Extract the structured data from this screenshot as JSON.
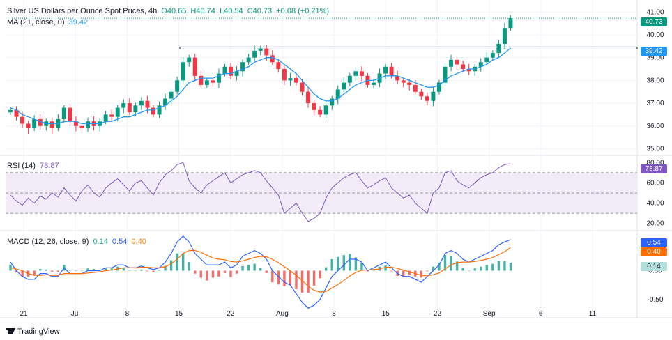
{
  "header": {
    "symbol": "Silver US Dollars per Ounce Spot Prices, 4h",
    "open": "O40.65",
    "high": "H40.74",
    "low": "L40.54",
    "close": "C40.73",
    "change": "+0.08 (+0.21%)",
    "ma_label": "MA (21, close, 0)",
    "ma_value": "39.42",
    "rsi_label": "RSI (14)",
    "rsi_value": "78.87",
    "macd_label": "MACD (12, 26, close, 9)",
    "macd_v1": "0.14",
    "macd_v2": "0.54",
    "macd_v3": "0.40"
  },
  "badges": {
    "price": "40.73",
    "ma": "39.42",
    "rsi": "78.87",
    "macd": "0.54",
    "signal": "0.40",
    "hist": "0.14"
  },
  "footer": {
    "brand": "TradingView"
  },
  "colors": {
    "up": "#089981",
    "down": "#f23645",
    "ma": "#2196f3",
    "rsi": "#7e57c2",
    "macd": "#2962ff",
    "signal": "#ff6d00",
    "grid": "#f0f3fa"
  },
  "chart_data": [
    {
      "type": "candlestick",
      "x_ticks": [
        "21",
        "Jul",
        "8",
        "15",
        "22",
        "Aug",
        "8",
        "15",
        "22",
        "Sep",
        "6",
        "11"
      ],
      "y_ticks": [
        "41.00",
        "40.00",
        "39.00",
        "38.00",
        "37.00",
        "36.00",
        "35.00"
      ],
      "ylim": [
        34.8,
        41.1
      ],
      "series": [
        {
          "name": "MA (21, close, 0)",
          "last": 39.42
        },
        {
          "name": "Resistance",
          "value": 39.42
        }
      ],
      "close_path": [
        36.7,
        36.4,
        36.1,
        35.9,
        36.3,
        36.0,
        36.2,
        35.9,
        36.3,
        36.8,
        36.2,
        36.0,
        35.9,
        36.2,
        36.0,
        36.2,
        36.5,
        36.4,
        36.8,
        37.0,
        36.6,
        36.9,
        37.1,
        36.8,
        36.5,
        36.9,
        37.2,
        37.5,
        38.0,
        38.8,
        39.0,
        38.2,
        37.8,
        38.0,
        37.9,
        38.3,
        38.6,
        38.2,
        38.4,
        38.8,
        39.0,
        39.3,
        39.4,
        39.1,
        38.8,
        38.5,
        38.0,
        38.1,
        37.9,
        37.5,
        37.0,
        36.7,
        36.5,
        36.9,
        37.2,
        37.6,
        37.9,
        38.2,
        38.4,
        38.2,
        37.8,
        37.9,
        38.3,
        38.6,
        38.2,
        38.0,
        37.9,
        37.8,
        37.5,
        37.3,
        37.1,
        37.5,
        37.9,
        38.6,
        38.9,
        38.7,
        38.5,
        38.4,
        38.6,
        38.8,
        39.0,
        39.2,
        39.6,
        40.3,
        40.73
      ],
      "ma_path": [
        36.8,
        36.7,
        36.5,
        36.4,
        36.3,
        36.2,
        36.1,
        36.1,
        36.1,
        36.2,
        36.2,
        36.2,
        36.1,
        36.1,
        36.1,
        36.1,
        36.2,
        36.2,
        36.3,
        36.4,
        36.4,
        36.5,
        36.6,
        36.7,
        36.7,
        36.8,
        36.9,
        37.1,
        37.3,
        37.6,
        37.9,
        38.0,
        38.1,
        38.1,
        38.1,
        38.2,
        38.3,
        38.3,
        38.4,
        38.5,
        38.6,
        38.8,
        38.9,
        39.0,
        39.0,
        38.9,
        38.7,
        38.5,
        38.3,
        38.0,
        37.7,
        37.4,
        37.2,
        37.1,
        37.1,
        37.2,
        37.4,
        37.6,
        37.8,
        37.9,
        38.0,
        38.0,
        38.1,
        38.2,
        38.2,
        38.2,
        38.1,
        38.0,
        37.9,
        37.8,
        37.7,
        37.7,
        37.8,
        38.0,
        38.2,
        38.3,
        38.4,
        38.5,
        38.5,
        38.6,
        38.7,
        38.9,
        39.0,
        39.2,
        39.42
      ]
    },
    {
      "type": "line",
      "name": "RSI (14)",
      "y_ticks": [
        "80.00",
        "60.00",
        "40.00",
        "20.00"
      ],
      "ylim": [
        15,
        85
      ],
      "bands": [
        30,
        50,
        70
      ],
      "values": [
        48,
        42,
        38,
        45,
        40,
        47,
        44,
        50,
        46,
        55,
        48,
        42,
        52,
        58,
        50,
        46,
        55,
        60,
        64,
        58,
        52,
        60,
        62,
        55,
        48,
        60,
        68,
        72,
        78,
        80,
        62,
        55,
        50,
        58,
        62,
        66,
        70,
        60,
        64,
        68,
        70,
        72,
        70,
        62,
        55,
        48,
        30,
        35,
        40,
        30,
        22,
        25,
        30,
        45,
        55,
        60,
        65,
        68,
        70,
        62,
        55,
        58,
        62,
        65,
        55,
        50,
        45,
        48,
        40,
        35,
        30,
        50,
        55,
        70,
        72,
        62,
        58,
        55,
        60,
        65,
        68,
        70,
        75,
        78,
        78.87
      ]
    },
    {
      "type": "macd",
      "name": "MACD (12, 26, close, 9)",
      "y_ticks": [
        "0.50",
        "0.00",
        "-0.50"
      ],
      "ylim": [
        -0.72,
        0.66
      ],
      "macd": [
        0.15,
        0.0,
        -0.1,
        -0.15,
        -0.15,
        -0.05,
        -0.05,
        -0.1,
        -0.1,
        0.05,
        -0.05,
        -0.05,
        -0.05,
        0.0,
        0.0,
        0.0,
        0.05,
        0.05,
        0.1,
        0.1,
        0.05,
        0.05,
        0.08,
        0.05,
        0.02,
        0.05,
        0.15,
        0.3,
        0.5,
        0.6,
        0.5,
        0.3,
        0.2,
        0.1,
        0.1,
        0.1,
        0.15,
        0.05,
        0.1,
        0.25,
        0.3,
        0.35,
        0.3,
        0.2,
        0.0,
        -0.1,
        -0.2,
        -0.25,
        -0.4,
        -0.55,
        -0.65,
        -0.6,
        -0.5,
        -0.3,
        -0.1,
        0.0,
        0.1,
        0.2,
        0.2,
        0.15,
        0.0,
        0.05,
        0.1,
        0.15,
        0.05,
        -0.05,
        -0.1,
        -0.1,
        -0.15,
        -0.2,
        -0.1,
        0.0,
        0.1,
        0.3,
        0.35,
        0.3,
        0.2,
        0.15,
        0.2,
        0.25,
        0.3,
        0.35,
        0.45,
        0.5,
        0.54
      ],
      "signal": [
        0.05,
        0.03,
        0.0,
        -0.05,
        -0.08,
        -0.08,
        -0.07,
        -0.08,
        -0.08,
        -0.05,
        -0.05,
        -0.05,
        -0.05,
        -0.04,
        -0.03,
        -0.02,
        0.0,
        0.01,
        0.03,
        0.05,
        0.05,
        0.05,
        0.06,
        0.06,
        0.05,
        0.05,
        0.07,
        0.12,
        0.2,
        0.3,
        0.35,
        0.35,
        0.32,
        0.27,
        0.22,
        0.2,
        0.19,
        0.16,
        0.15,
        0.17,
        0.2,
        0.23,
        0.25,
        0.24,
        0.2,
        0.14,
        0.07,
        0.0,
        -0.08,
        -0.17,
        -0.27,
        -0.34,
        -0.37,
        -0.36,
        -0.3,
        -0.24,
        -0.17,
        -0.09,
        -0.03,
        0.01,
        0.01,
        0.02,
        0.03,
        0.06,
        0.06,
        0.04,
        0.01,
        -0.02,
        -0.05,
        -0.08,
        -0.09,
        -0.07,
        -0.04,
        0.03,
        0.1,
        0.14,
        0.15,
        0.15,
        0.16,
        0.18,
        0.2,
        0.23,
        0.28,
        0.33,
        0.4
      ],
      "hist_last": 0.14
    }
  ]
}
